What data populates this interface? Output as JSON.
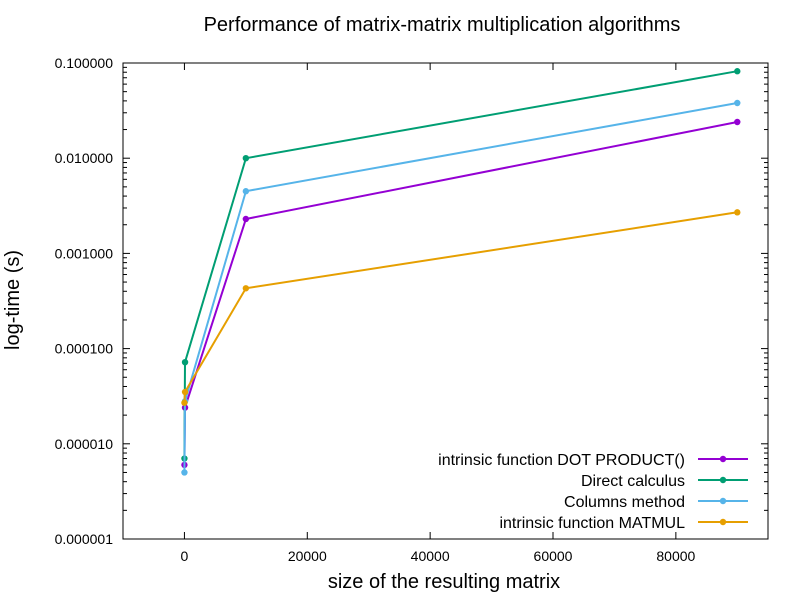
{
  "chart_data": {
    "type": "line",
    "title": "Performance of matrix-matrix multiplication algorithms",
    "xlabel": "size of the resulting matrix",
    "ylabel": "log-time (s)",
    "xscale": "linear",
    "yscale": "log",
    "xlim": [
      -10000,
      95000
    ],
    "ylim": [
      1e-06,
      0.1
    ],
    "xticks": [
      0,
      20000,
      40000,
      60000,
      80000
    ],
    "xtick_labels": [
      "0",
      "20000",
      "40000",
      "60000",
      "80000"
    ],
    "yticks": [
      1e-06,
      1e-05,
      0.0001,
      0.001,
      0.01,
      0.1
    ],
    "ytick_labels": [
      "0.000001",
      "0.000010",
      "0.000100",
      "0.001000",
      "0.010000",
      "0.100000"
    ],
    "grid": false,
    "legend_position": "bottom-right",
    "x": [
      1,
      100,
      10000,
      90000
    ],
    "series": [
      {
        "name": "intrinsic function DOT PRODUCT()",
        "color": "#9400d3",
        "values": [
          6e-06,
          2.4e-05,
          0.0023,
          0.024
        ]
      },
      {
        "name": "Direct calculus",
        "color": "#009e73",
        "values": [
          7e-06,
          7.2e-05,
          0.01,
          0.082
        ]
      },
      {
        "name": "Columns method",
        "color": "#56b4e9",
        "values": [
          5e-06,
          2.8e-05,
          0.0045,
          0.038
        ]
      },
      {
        "name": "intrinsic function MATMUL",
        "color": "#e69f00",
        "values": [
          2.7e-05,
          3.5e-05,
          0.00043,
          0.0027
        ]
      }
    ]
  }
}
